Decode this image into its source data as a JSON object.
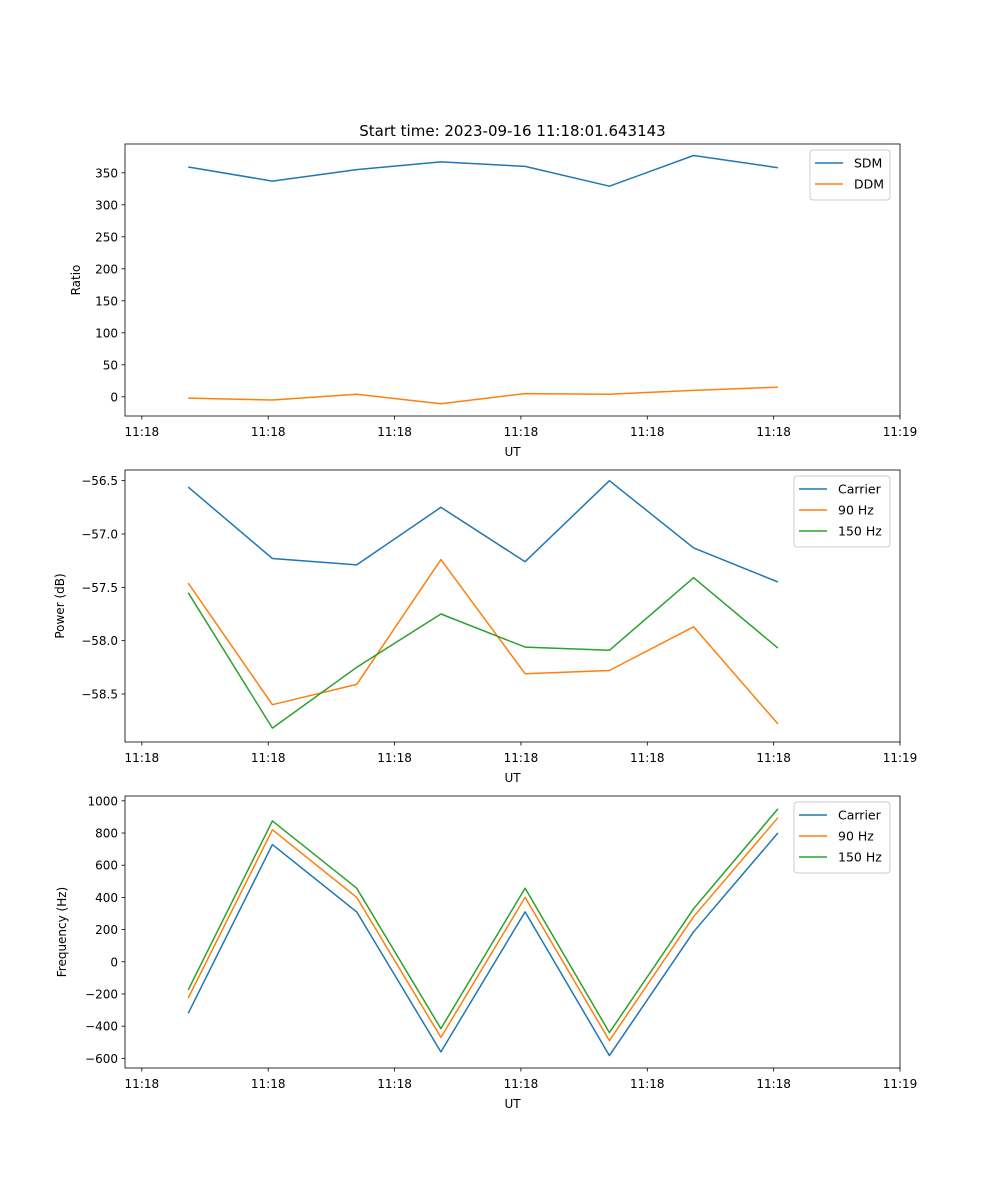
{
  "figure_title": "Start time: 2023-09-16 11:18:01.643143",
  "chart_data": [
    {
      "type": "line",
      "title": "Start time: 2023-09-16 11:18:01.643143",
      "xlabel": "UT",
      "ylabel": "Ratio",
      "x": [
        1,
        2,
        3,
        4,
        5,
        6,
        7,
        8
      ],
      "xlim": [
        0.25,
        9.45
      ],
      "xticks": [
        0.45,
        1.95,
        3.45,
        4.95,
        6.45,
        7.95,
        9.45
      ],
      "xtick_labels": [
        "11:18",
        "11:18",
        "11:18",
        "11:18",
        "11:18",
        "11:18",
        "11:19"
      ],
      "ylim": [
        -30,
        395
      ],
      "yticks": [
        0,
        50,
        100,
        150,
        200,
        250,
        300,
        350
      ],
      "ytick_labels": [
        "0",
        "50",
        "100",
        "150",
        "200",
        "250",
        "300",
        "350"
      ],
      "legend_position": "upper right",
      "series": [
        {
          "name": "SDM",
          "color": "#1f77b4",
          "values": [
            359,
            337,
            355,
            367,
            360,
            329,
            377,
            358
          ]
        },
        {
          "name": "DDM",
          "color": "#ff7f0e",
          "values": [
            -2,
            -5,
            4,
            -11,
            5,
            4,
            10,
            15
          ]
        }
      ]
    },
    {
      "type": "line",
      "xlabel": "UT",
      "ylabel": "Power (dB)",
      "x": [
        1,
        2,
        3,
        4,
        5,
        6,
        7,
        8
      ],
      "xlim": [
        0.25,
        9.45
      ],
      "xticks": [
        0.45,
        1.95,
        3.45,
        4.95,
        6.45,
        7.95,
        9.45
      ],
      "xtick_labels": [
        "11:18",
        "11:18",
        "11:18",
        "11:18",
        "11:18",
        "11:18",
        "11:19"
      ],
      "ylim": [
        -58.95,
        -56.4
      ],
      "yticks": [
        -58.5,
        -58.0,
        -57.5,
        -57.0,
        -56.5
      ],
      "ytick_labels": [
        "−58.5",
        "−58.0",
        "−57.5",
        "−57.0",
        "−56.5"
      ],
      "legend_position": "upper right",
      "series": [
        {
          "name": "Carrier",
          "color": "#1f77b4",
          "values": [
            -56.56,
            -57.23,
            -57.29,
            -56.75,
            -57.26,
            -56.5,
            -57.13,
            -57.45
          ]
        },
        {
          "name": "90 Hz",
          "color": "#ff7f0e",
          "values": [
            -57.46,
            -58.6,
            -58.41,
            -57.24,
            -58.31,
            -58.28,
            -57.87,
            -58.78
          ]
        },
        {
          "name": "150 Hz",
          "color": "#2ca02c",
          "values": [
            -57.55,
            -58.82,
            -58.25,
            -57.75,
            -58.06,
            -58.09,
            -57.41,
            -58.07
          ]
        }
      ]
    },
    {
      "type": "line",
      "xlabel": "UT",
      "ylabel": "Frequency (Hz)",
      "x": [
        1,
        2,
        3,
        4,
        5,
        6,
        7,
        8
      ],
      "xlim": [
        0.25,
        9.45
      ],
      "xticks": [
        0.45,
        1.95,
        3.45,
        4.95,
        6.45,
        7.95,
        9.45
      ],
      "xtick_labels": [
        "11:18",
        "11:18",
        "11:18",
        "11:18",
        "11:18",
        "11:18",
        "11:19"
      ],
      "ylim": [
        -660,
        1030
      ],
      "yticks": [
        -600,
        -400,
        -200,
        0,
        200,
        400,
        600,
        800,
        1000
      ],
      "ytick_labels": [
        "−600",
        "−400",
        "−200",
        "0",
        "200",
        "400",
        "600",
        "800",
        "1000"
      ],
      "legend_position": "upper right",
      "series": [
        {
          "name": "Carrier",
          "color": "#1f77b4",
          "values": [
            -320,
            728,
            310,
            -560,
            310,
            -583,
            186,
            800
          ]
        },
        {
          "name": "90 Hz",
          "color": "#ff7f0e",
          "values": [
            -225,
            820,
            400,
            -470,
            400,
            -490,
            280,
            895
          ]
        },
        {
          "name": "150 Hz",
          "color": "#2ca02c",
          "values": [
            -175,
            875,
            457,
            -415,
            457,
            -440,
            330,
            950
          ]
        }
      ]
    }
  ]
}
